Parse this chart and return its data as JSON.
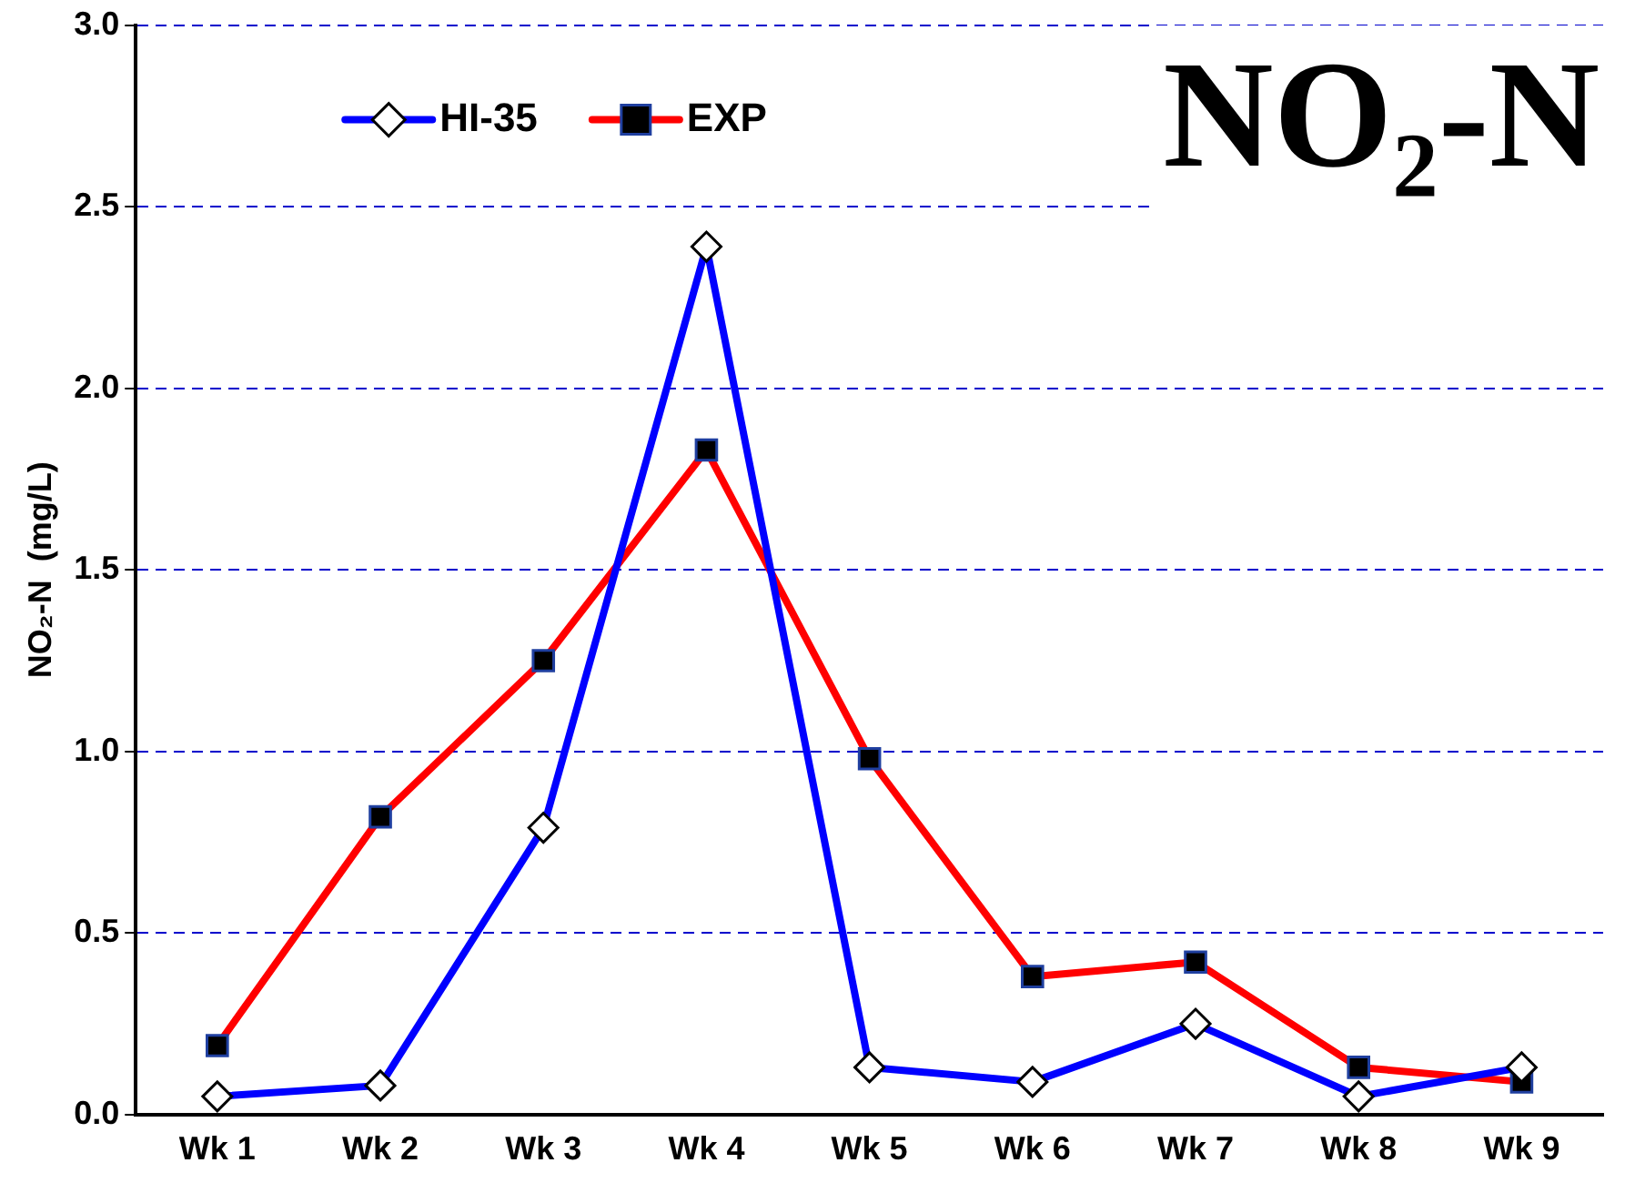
{
  "chart_data": {
    "type": "line",
    "title": "NO₂-N",
    "ylabel": "NO₂-N  (mg/L)",
    "categories": [
      "Wk 1",
      "Wk 2",
      "Wk 3",
      "Wk 4",
      "Wk 5",
      "Wk 6",
      "Wk 7",
      "Wk 8",
      "Wk 9"
    ],
    "series": [
      {
        "name": "HI-35",
        "color": "#0000ff",
        "marker": "diamond",
        "values": [
          0.05,
          0.08,
          0.79,
          2.39,
          0.13,
          0.09,
          0.25,
          0.05,
          0.13
        ]
      },
      {
        "name": "EXP",
        "color": "#ff0000",
        "marker": "square",
        "values": [
          0.19,
          0.82,
          1.25,
          1.83,
          0.98,
          0.38,
          0.42,
          0.13,
          0.09
        ]
      }
    ],
    "ylim": [
      0,
      3
    ],
    "yticks": [
      {
        "value": 0,
        "label": "0.0"
      },
      {
        "value": 0.5,
        "label": "0.5"
      },
      {
        "value": 1,
        "label": "1.0"
      },
      {
        "value": 1.5,
        "label": "1.5"
      },
      {
        "value": 2,
        "label": "2.0"
      },
      {
        "value": 2.5,
        "label": "2.5"
      },
      {
        "value": 3,
        "label": "3.0"
      }
    ],
    "grid": "y",
    "legend": "top left"
  }
}
